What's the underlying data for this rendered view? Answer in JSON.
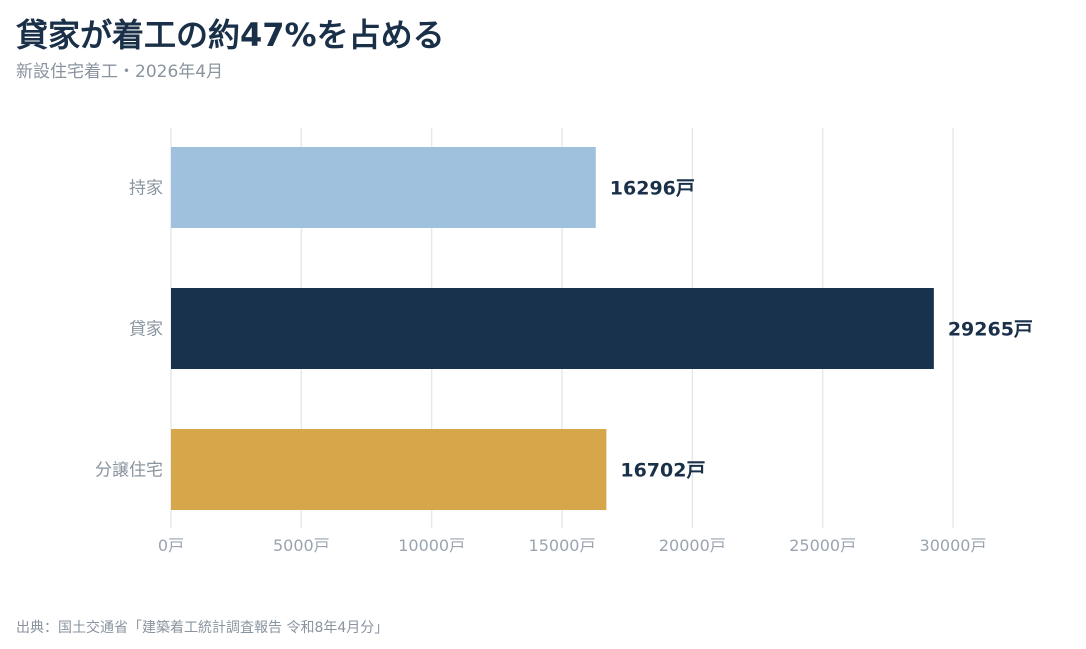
{
  "title": "貸家が着工の約47%を占める",
  "subtitle": "新設住宅着工・2026年4月",
  "source": "出典：国土交通省「建築着工統計調査報告 令和8年4月分」",
  "unit": "戸",
  "colors": {
    "title": "#1a3049",
    "muted": "#8a949f",
    "grid": "#e6e9ec"
  },
  "chart_data": {
    "type": "bar",
    "orientation": "horizontal",
    "categories": [
      "持家",
      "貸家",
      "分譲住宅"
    ],
    "values": [
      16296,
      29265,
      16702
    ],
    "value_labels": [
      "16296戸",
      "29265戸",
      "16702戸"
    ],
    "bar_colors": [
      "#9fc1de",
      "#18324d",
      "#d6a64a"
    ],
    "xlim": [
      0,
      30000
    ],
    "xticks": [
      0,
      5000,
      10000,
      15000,
      20000,
      25000,
      30000
    ],
    "xtick_labels": [
      "0戸",
      "5000戸",
      "10000戸",
      "15000戸",
      "20000戸",
      "25000戸",
      "30000戸"
    ],
    "grid": "vertical",
    "legend": "none"
  }
}
